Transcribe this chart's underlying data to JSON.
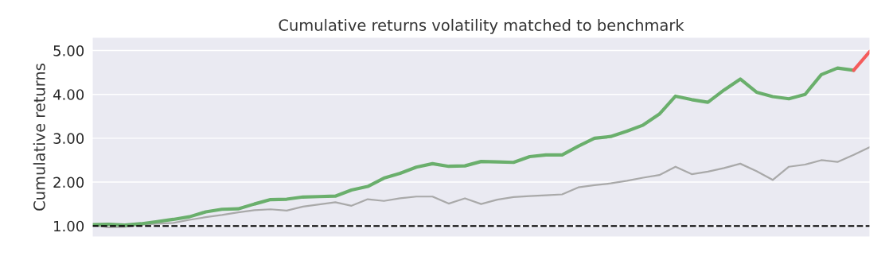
{
  "chart_data": {
    "type": "line",
    "title": "Cumulative returns volatility matched to benchmark",
    "ylabel": "Cumulative returns",
    "categories": [
      null,
      null,
      null,
      null,
      null,
      null,
      null,
      null,
      null,
      null,
      null,
      null,
      null,
      null,
      null,
      null,
      null,
      null,
      null,
      null,
      null,
      null,
      null,
      null,
      null,
      null,
      null,
      null,
      null,
      null,
      null,
      null,
      null,
      null,
      null,
      null,
      null,
      null,
      null,
      null,
      null,
      null,
      null,
      null,
      null,
      null,
      null,
      null,
      null
    ],
    "ylim": [
      0.75,
      5.3
    ],
    "yticks": [
      {
        "value": 1,
        "label": "1.00"
      },
      {
        "value": 2,
        "label": "2.00"
      },
      {
        "value": 3,
        "label": "3.00"
      },
      {
        "value": 4,
        "label": "4.00"
      },
      {
        "value": 5,
        "label": "5.00"
      }
    ],
    "grid": "y",
    "line_style": "solid",
    "marker": "none",
    "ref_lines": [
      {
        "axis": "y",
        "value": 1,
        "color": "#000000",
        "line_style": "dashed"
      }
    ],
    "series": [
      {
        "color": "#a9a9a9",
        "values": [
          1.02,
          0.97,
          0.98,
          1.03,
          1.05,
          1.07,
          1.14,
          1.2,
          1.25,
          1.31,
          1.36,
          1.38,
          1.35,
          1.44,
          1.49,
          1.54,
          1.46,
          1.61,
          1.57,
          1.63,
          1.67,
          1.67,
          1.51,
          1.63,
          1.5,
          1.6,
          1.66,
          1.68,
          1.7,
          1.72,
          1.88,
          1.93,
          1.97,
          2.03,
          2.1,
          2.16,
          2.35,
          2.18,
          2.24,
          2.32,
          2.42,
          2.25,
          2.05,
          2.35,
          2.4,
          2.5,
          2.46,
          2.62,
          2.8
        ]
      },
      {
        "color": "#6aaf6c",
        "values": [
          1.03,
          1.04,
          1.02,
          1.05,
          1.1,
          1.15,
          1.21,
          1.32,
          1.38,
          1.39,
          1.5,
          1.6,
          1.61,
          1.66,
          1.67,
          1.68,
          1.82,
          1.9,
          2.09,
          2.2,
          2.34,
          2.42,
          2.36,
          2.37,
          2.47,
          2.46,
          2.45,
          2.58,
          2.62,
          2.62,
          2.82,
          3.0,
          3.04,
          3.16,
          3.3,
          3.55,
          3.96,
          3.88,
          3.82,
          4.1,
          4.35,
          4.05,
          3.95,
          3.9,
          4.0,
          4.45,
          4.6,
          4.55,
          null
        ]
      },
      {
        "color": "#f45b5b",
        "values": [
          null,
          null,
          null,
          null,
          null,
          null,
          null,
          null,
          null,
          null,
          null,
          null,
          null,
          null,
          null,
          null,
          null,
          null,
          null,
          null,
          null,
          null,
          null,
          null,
          null,
          null,
          null,
          null,
          null,
          null,
          null,
          null,
          null,
          null,
          null,
          null,
          null,
          null,
          null,
          null,
          null,
          null,
          null,
          null,
          null,
          null,
          null,
          4.55,
          4.98
        ]
      }
    ]
  }
}
